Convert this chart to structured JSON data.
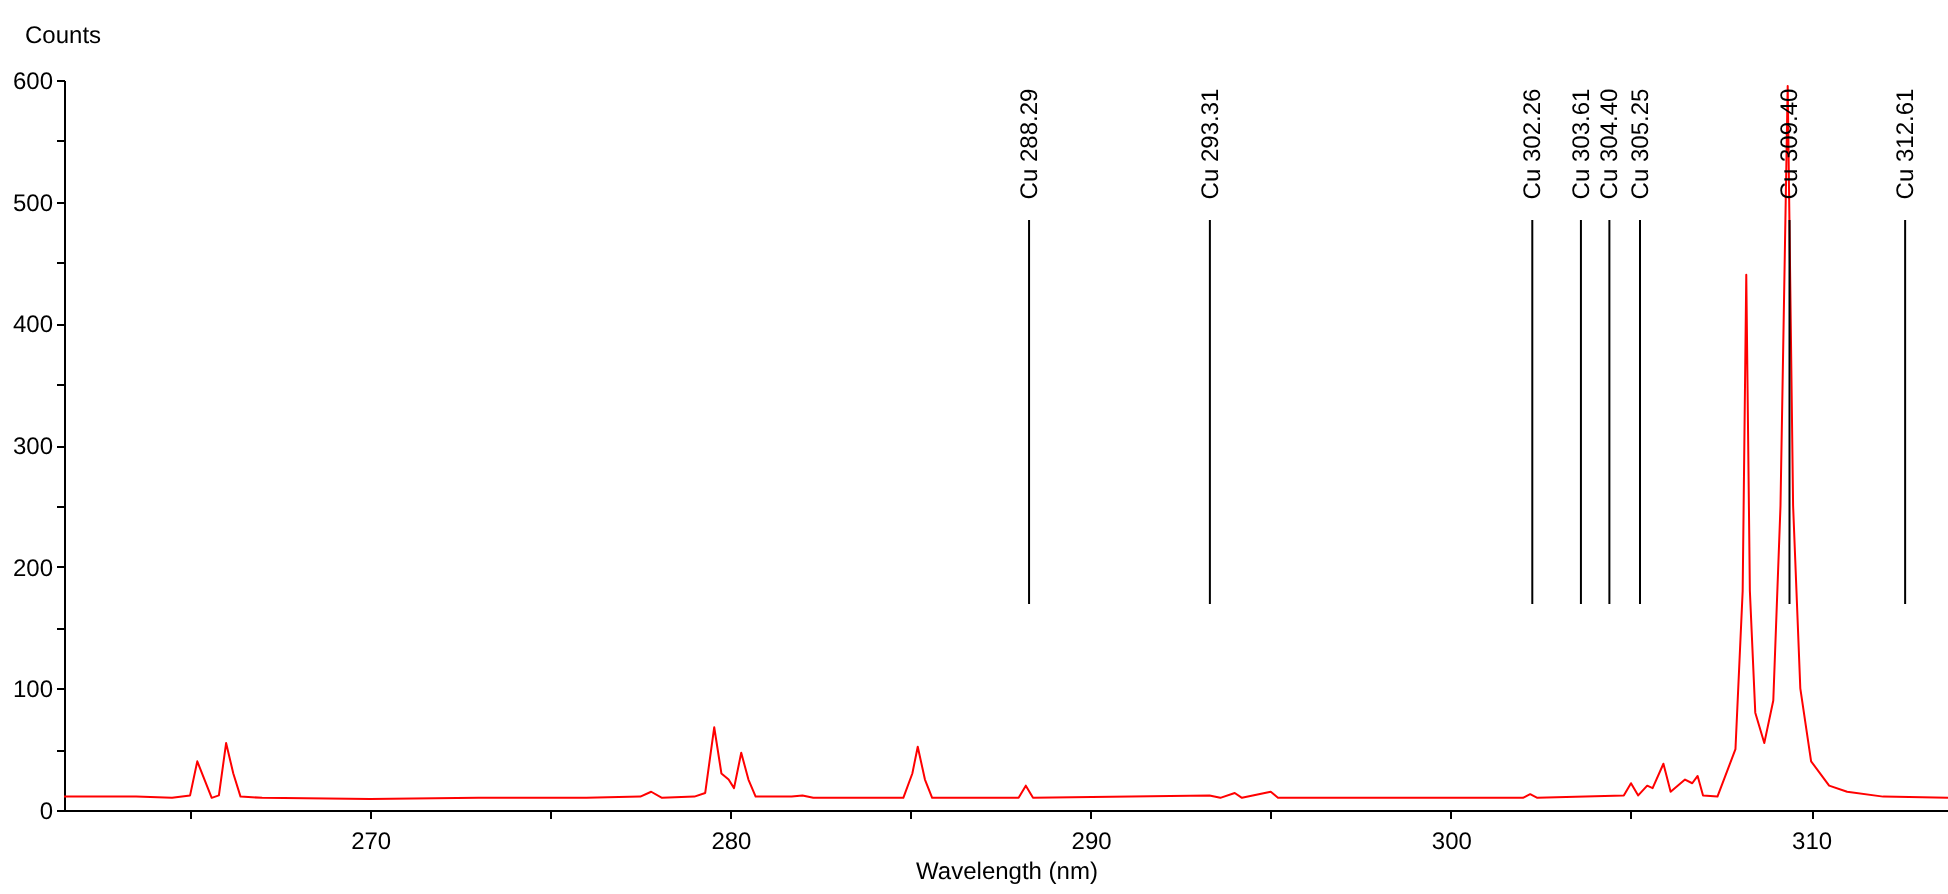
{
  "chart_data": {
    "type": "line",
    "xlabel": "Wavelength (nm)",
    "ylabel": "Counts",
    "xlim": [
      261.5,
      313.8
    ],
    "ylim": [
      0,
      600
    ],
    "xticks": [
      {
        "value": 265,
        "label": null
      },
      270,
      {
        "value": 275,
        "label": null
      },
      280,
      {
        "value": 285,
        "label": null
      },
      290,
      {
        "value": 295,
        "label": null
      },
      300,
      {
        "value": 305,
        "label": null
      },
      310
    ],
    "yticks": [
      0,
      {
        "value": 50,
        "label": null
      },
      100,
      {
        "value": 150,
        "label": null
      },
      200,
      {
        "value": 250,
        "label": null
      },
      300,
      {
        "value": 350,
        "label": null
      },
      400,
      {
        "value": 450,
        "label": null
      },
      500,
      {
        "value": 550,
        "label": null
      },
      600
    ],
    "grid": false,
    "series": [
      {
        "color": "#ff0000",
        "x": [
          261.5,
          262.5,
          263.5,
          264.5,
          265.0,
          265.2,
          265.4,
          265.6,
          265.8,
          266.0,
          266.2,
          266.4,
          267,
          270,
          273,
          276,
          277.5,
          277.8,
          278.1,
          279.0,
          279.3,
          279.55,
          279.75,
          279.95,
          280.1,
          280.3,
          280.5,
          280.7,
          281.7,
          282,
          282.3,
          284.8,
          285.05,
          285.2,
          285.4,
          285.6,
          288.0,
          288.2,
          288.4,
          293.3,
          293.6,
          294.0,
          294.2,
          295.0,
          295.2,
          302.0,
          302.2,
          302.4,
          304.8,
          305.0,
          305.2,
          305.45,
          305.6,
          305.9,
          306.1,
          306.5,
          306.7,
          306.85,
          307.0,
          307.4,
          307.9,
          308.1,
          308.2,
          308.3,
          308.45,
          308.7,
          308.95,
          309.15,
          309.35,
          309.5,
          309.7,
          310.0,
          310.5,
          311,
          312,
          313.8
        ],
        "values": [
          11,
          11,
          11,
          10,
          12,
          40,
          25,
          10,
          12,
          55,
          30,
          11,
          10,
          9,
          10,
          10,
          11,
          15,
          10,
          11,
          14,
          68,
          30,
          25,
          18,
          47,
          25,
          11,
          11,
          12,
          10,
          10,
          30,
          52,
          25,
          10,
          10,
          20,
          10,
          12,
          10,
          14,
          10,
          15,
          10,
          10,
          13,
          10,
          12,
          22,
          12,
          20,
          18,
          38,
          15,
          25,
          22,
          28,
          12,
          11,
          50,
          180,
          440,
          180,
          80,
          55,
          90,
          250,
          595,
          250,
          100,
          40,
          20,
          15,
          11,
          10
        ]
      }
    ],
    "ref_lines": [
      {
        "axis": "x",
        "value": 288.29,
        "label": "Cu 288.29"
      },
      {
        "axis": "x",
        "value": 293.31,
        "label": "Cu 293.31"
      },
      {
        "axis": "x",
        "value": 302.26,
        "label": "Cu 302.26"
      },
      {
        "axis": "x",
        "value": 303.61,
        "label": "Cu 303.61"
      },
      {
        "axis": "x",
        "value": 304.4,
        "label": "Cu 304.40"
      },
      {
        "axis": "x",
        "value": 305.25,
        "label": "Cu 305.25"
      },
      {
        "axis": "x",
        "value": 309.4,
        "label": "Cu 309.40"
      },
      {
        "axis": "x",
        "value": 312.61,
        "label": "Cu 312.61"
      }
    ]
  }
}
